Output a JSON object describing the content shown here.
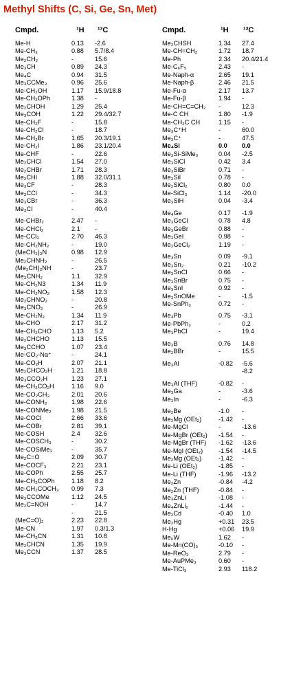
{
  "title": "Methyl Shifts (C, Si, Ge, Sn, Met)",
  "headers": {
    "compound": "Cmpd.",
    "h": "¹H",
    "c": "¹³C"
  },
  "left": [
    [
      "Me-H",
      "0.13",
      "-2.6"
    ],
    [
      "Me-CH₃",
      "0.88",
      "5.7/8.4"
    ],
    [
      "Me₂CH₂",
      "-",
      "15.6"
    ],
    [
      "Me₃CH",
      "0.89",
      "24.3"
    ],
    [
      "Me₄C",
      "0.94",
      "31.5"
    ],
    [
      "Me₃CCMe₃",
      "0.96",
      "25.6"
    ],
    [
      "Me-CH₂OH",
      "1.17",
      "15.9/18.8"
    ],
    [
      "Me-CH₂OPh",
      "1.38",
      "-"
    ],
    [
      "Me₂CHOH",
      "1.29",
      "25.4"
    ],
    [
      "Me₃COH",
      "1.22",
      "29.4/32.7"
    ],
    [
      "Me-CH₂F",
      "-",
      "15.8"
    ],
    [
      "Me-CH₂Cl",
      "-",
      "18.7"
    ],
    [
      "Me-CH₂Br",
      "1.65",
      "20.3/19.1"
    ],
    [
      "Me-CH₂I",
      "1.86",
      "23.1/20.4"
    ],
    [
      "Me-CHF",
      "-",
      "22.6"
    ],
    [
      "Me₂CHCl",
      "1.54",
      "27.0"
    ],
    [
      "Me₂CHBr",
      "1.71",
      "28.3"
    ],
    [
      "Me₂CHI",
      "1.88",
      "32.0/31.1"
    ],
    [
      "Me₃CF",
      "-",
      "28.3"
    ],
    [
      "Me₃CCl",
      "-",
      "34.3"
    ],
    [
      "Me₃CBr",
      "-",
      "36.3"
    ],
    [
      "Me₃CI",
      "-",
      "40.4"
    ],
    null,
    [
      "Me-CHBr₂",
      "2.47",
      "-"
    ],
    [
      "Me-CHCl₂",
      "2.1",
      "-"
    ],
    [
      "Me-CCl₃",
      "2.70",
      "46.3"
    ],
    [
      "Me-CH₂NH₂",
      "-",
      "19.0"
    ],
    [
      "(MeCH₂)₃N",
      "0.98",
      "12.9"
    ],
    [
      "Me₂CHNH₂",
      "-",
      "26.5"
    ],
    [
      "(Me₂CH)₂NH",
      "-",
      "23.7"
    ],
    [
      "Me₃CNH₂",
      "1.1",
      "32.9"
    ],
    [
      "Me-CH₂N3",
      "1.34",
      "11.9"
    ],
    [
      "Me-CH₂NO₂",
      "1.58",
      "12.3"
    ],
    [
      "Me₂CHNO₂",
      "-",
      "20.8"
    ],
    [
      "Me₃CNO₂",
      "-",
      "26.9"
    ],
    [
      "Me-CH₂N₃",
      "1.34",
      "11.9"
    ],
    [
      "Me-CHO",
      "2.17",
      "31.2"
    ],
    [
      "Me-CH₂CHO",
      "1.13",
      "5.2"
    ],
    [
      "Me₂CHCHO",
      "1.13",
      "15.5"
    ],
    [
      "Me₃CCHO",
      "1.07",
      "23.4"
    ],
    [
      "Me-CO₂-Na⁺",
      "-",
      "24.1"
    ],
    [
      "Me-CO₂H",
      "2.07",
      "21.1"
    ],
    [
      "Me₂CHCO₂H",
      "1.21",
      "18.8"
    ],
    [
      "Me₃CCO₂H",
      "1.23",
      "27.1"
    ],
    [
      "Me-CH₂CO₂H",
      "1.16",
      "9.0"
    ],
    [
      "Me-CO₂CH₃",
      "2.01",
      "20.6"
    ],
    [
      "Me-CONH₂",
      "1.98",
      "22.6"
    ],
    [
      "Me-CONMe₂",
      "1.98",
      "21.5"
    ],
    [
      "Me-COCl",
      "2.66",
      "33.6"
    ],
    [
      "Me-COBr",
      "2.81",
      "39.1"
    ],
    [
      "Me-COSH",
      "2.4",
      "32.6"
    ],
    [
      "Me-COSCH₃",
      "-",
      "30.2"
    ],
    [
      "Me-COSiMe₃",
      "-",
      "35.7"
    ],
    [
      "Me₂C=O",
      "2.09",
      "30.7"
    ],
    [
      "Me-COCF₃",
      "2.21",
      "23.1"
    ],
    [
      "Me-COPh",
      "2.55",
      "25.7"
    ],
    [
      "Me-CH₂COPh",
      "1.18",
      "8.2"
    ],
    [
      "Me-CH₂COCH₃",
      "0.99",
      "7.3"
    ],
    [
      "Me₃CCOMe",
      "1.12",
      "24.5"
    ],
    [
      "Me₂C=NOH",
      "-",
      "14.7"
    ],
    [
      "",
      "-",
      "21.5"
    ],
    [
      "(MeC=O)₂",
      "2.23",
      "22.8"
    ],
    [
      "Me-CN",
      "1.97",
      "0.3/1.3"
    ],
    [
      "Me-CH₂CN",
      "1.31",
      "10.8"
    ],
    [
      "Me₂CHCN",
      "1.35",
      "19.9"
    ],
    [
      "Me₃CCN",
      "1.37",
      "28.5"
    ]
  ],
  "right": [
    [
      "Me₂CHSH",
      "1.34",
      "27.4"
    ],
    [
      "Me-CH=CH₂",
      "1.72",
      "18.7"
    ],
    [
      "Me-Ph",
      "2.34",
      "20.4/21.4"
    ],
    [
      "Me-C₆F₅",
      "2.43",
      "-"
    ],
    [
      "Me-Naph-α",
      "2.65",
      "19.1"
    ],
    [
      "Me-Naph-β",
      "2.46",
      "21.5"
    ],
    [
      "Me-Fu-α",
      "2.17",
      "13.7"
    ],
    [
      "Me-Fu-β",
      "1.94",
      "-"
    ],
    [
      "Me-CH=C=CH₂",
      "-",
      "12.3"
    ],
    [
      "Me-C CH",
      "1.80",
      "-1.9"
    ],
    [
      "Me-CH₂C CH",
      "1.15",
      "-"
    ],
    [
      "Me₃C⁺H",
      "-",
      "60.0"
    ],
    [
      "Me₃C⁺",
      "-",
      "47.5"
    ],
    [
      "Me₄Si",
      "0.0",
      "0.0"
    ],
    [
      "Me₃Si-SiMe₃",
      "0.04",
      "-2.5"
    ],
    [
      "Me₃SiCl",
      "0.42",
      "3.4"
    ],
    [
      "Me₃SiBr",
      "0.71",
      "-"
    ],
    [
      "Me₃SiI",
      "0.78",
      "-"
    ],
    [
      "Me₂SiCl₂",
      "0.80",
      "0.0"
    ],
    [
      "Me-SiCl₃",
      "1.14",
      "-20.0"
    ],
    [
      "Me₃SiH",
      "0.04",
      "-3.4"
    ],
    null,
    [
      "Me₄Ge",
      "0.17",
      "-1.9"
    ],
    [
      "Me₃GeCl",
      "0.78",
      "4.8"
    ],
    [
      "Me₃GeBr",
      "0.88",
      "-"
    ],
    [
      "Me₃GeI",
      "0.98",
      "-"
    ],
    [
      "Me₂GeCl₂",
      "1.19",
      "-"
    ],
    null,
    [
      "Me₄Sn",
      "0.09",
      "-9.1"
    ],
    [
      "Me₃Sn₂",
      "0.21",
      "-10.2"
    ],
    [
      "Me₃SnCl",
      "0.66",
      "-"
    ],
    [
      "Me₃SnBr",
      "0.75",
      "-"
    ],
    [
      "Me₃SnI",
      "0.92",
      "-"
    ],
    [
      "Me₃SnOMe",
      "-",
      "-1.5"
    ],
    [
      "Me-SnPh₃",
      "0.72",
      "-"
    ],
    null,
    [
      "Me₄Pb",
      "0.75",
      "-3.1"
    ],
    [
      "Me-PbPh₃",
      "-",
      "0.2"
    ],
    [
      "Me₃PbCl",
      "-",
      "19.4"
    ],
    null,
    [
      "Me₃B",
      "0.76",
      "14.8"
    ],
    [
      "Me₂BBr",
      "-",
      "15.5"
    ],
    null,
    [
      "Me₃Al",
      "-0.82",
      "-5.6"
    ],
    [
      "",
      "",
      "-8.2"
    ],
    null,
    [
      "Me₃Al (THF)",
      "-0.82",
      "-"
    ],
    [
      "Me₃Ga",
      "-",
      "-3.6"
    ],
    [
      "Me₃In",
      "-",
      "-6.3"
    ],
    null,
    [
      "Me₂Be",
      "-1.0",
      "-"
    ],
    [
      "Me₂Mg (OEt₂)",
      "-1.42",
      "-"
    ],
    [
      "Me-MgCl",
      "-",
      "-13.6"
    ],
    [
      "Me-MgBr (OEt₂)",
      "-1.54",
      "-"
    ],
    [
      "Me-MgBr (THF)",
      "-1.62",
      "-13.6"
    ],
    [
      "Me-MgI (OEt₂)",
      "-1.54",
      "-14.5"
    ],
    [
      "Me₂Mg (OEt₂)",
      "-1.42",
      "-"
    ],
    [
      "Me-Li (OEt₂)",
      "-1.85",
      "-"
    ],
    [
      "Me-Li (THF)",
      "-1.96",
      "-13.2"
    ],
    [
      "Me₂Zn",
      "-0.84",
      "-4.2"
    ],
    [
      "Me₂Zn (THF)",
      "-0.84",
      "-"
    ],
    [
      "Me₃ZnLi",
      "-1.08",
      "-"
    ],
    [
      "Me₄ZnLi₂",
      "-1.44",
      "-"
    ],
    [
      "Me₂Cd",
      "-0.40",
      "1.0"
    ],
    [
      "Me₂Hg",
      "+0.31",
      "23.5"
    ],
    [
      "H-Hg",
      "+0.06",
      "19.9"
    ],
    [
      "Me₆W",
      "1.62",
      "-"
    ],
    [
      "Me-Mn(CO)₅",
      "-0.10",
      "-"
    ],
    [
      "Me-ReO₃",
      "2.79",
      "-"
    ],
    [
      "Me-AuPMe₃",
      "0.60",
      "-"
    ],
    [
      "Me-TiCl₃",
      "2.93",
      "118.2"
    ]
  ]
}
